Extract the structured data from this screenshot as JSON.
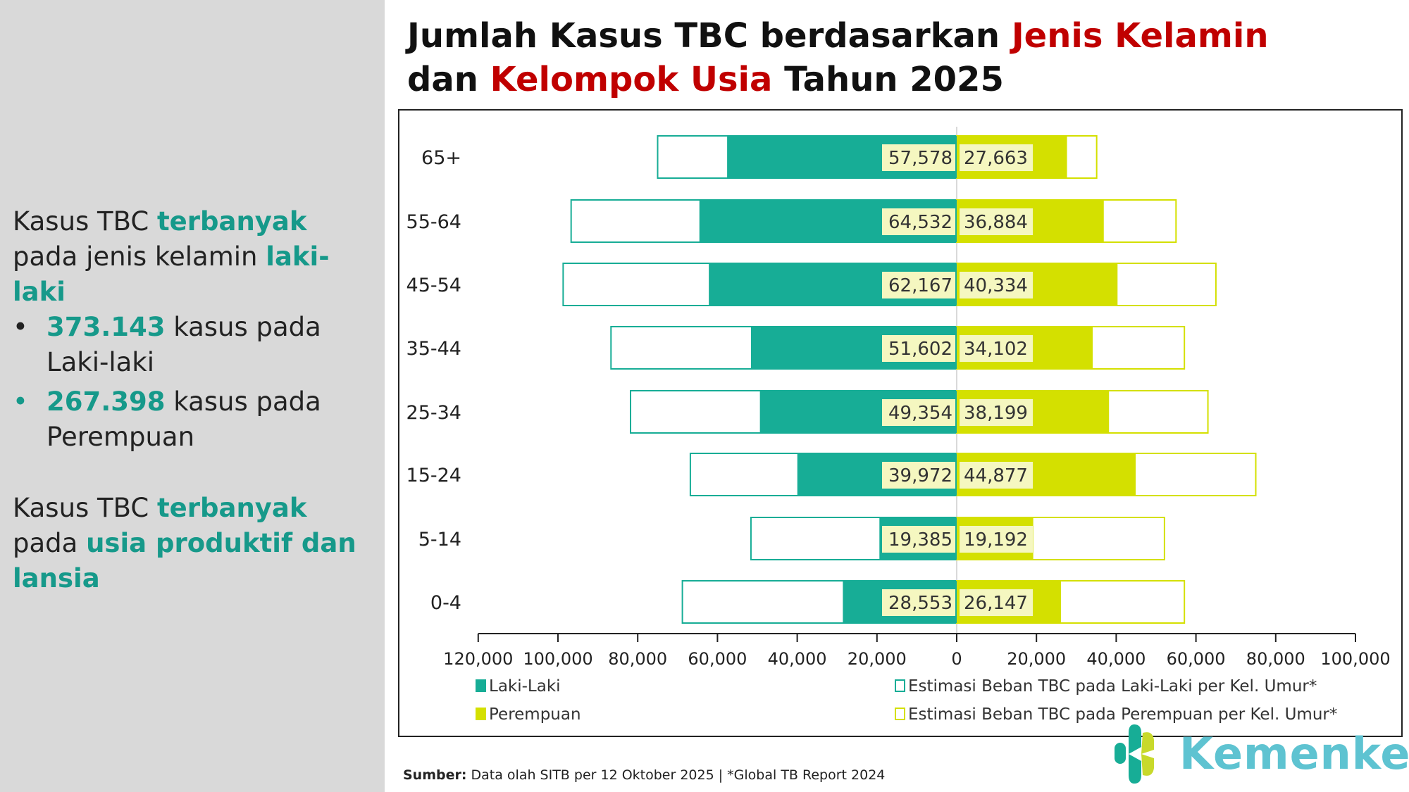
{
  "left_panel": {
    "p1": {
      "a": "Kasus TBC ",
      "b": "terbanyak",
      "c": " pada jenis kelamin ",
      "d": "laki-laki"
    },
    "bullets": [
      {
        "num": "373.143",
        "text": " kasus pada Laki-laki"
      },
      {
        "num": "267.398",
        "text": " kasus pada Perempuan"
      }
    ],
    "p2": {
      "a": "Kasus TBC ",
      "b": "terbanyak",
      "c": " pada ",
      "d": "usia produktif dan lansia"
    }
  },
  "title": {
    "a": "Jumlah Kasus TBC berdasarkan ",
    "b": "Jenis Kelamin",
    "c": "dan ",
    "d": "Kelompok Usia",
    "e": " Tahun 2025"
  },
  "source": {
    "label": "Sumber:",
    "text": " Data olah SITB per 12 Oktober 2025 | *Global TB Report 2024"
  },
  "logo": {
    "text": "Kemenkes"
  },
  "colors": {
    "male": "#17ad96",
    "female": "#d4e000",
    "label_bg": "#f5f7c0"
  },
  "chart_data": {
    "type": "bar",
    "orientation": "horizontal-population-pyramid",
    "categories": [
      "65+",
      "55-64",
      "45-54",
      "35-44",
      "25-34",
      "15-24",
      "5-14",
      "0-4"
    ],
    "series": [
      {
        "name": "Laki-Laki",
        "values": [
          57578,
          64532,
          62167,
          51602,
          49354,
          39972,
          19385,
          28553
        ],
        "labels": [
          "57,578",
          "64,532",
          "62,167",
          "51,602",
          "49,354",
          "39,972",
          "19,385",
          "28,553"
        ]
      },
      {
        "name": "Perempuan",
        "values": [
          27663,
          36884,
          40334,
          34102,
          38199,
          44877,
          19192,
          26147
        ],
        "labels": [
          "27,663",
          "36,884",
          "40,334",
          "34,102",
          "38,199",
          "44,877",
          "19,192",
          "26,147"
        ]
      },
      {
        "name": "Estimasi Beban TBC pada Laki-Laki per Kel. Umur*",
        "values": [
          75000,
          96700,
          98700,
          86700,
          81800,
          66800,
          51600,
          68800
        ]
      },
      {
        "name": "Estimasi Beban TBC pada Perempuan per Kel. Umur*",
        "values": [
          35100,
          55000,
          65000,
          57100,
          63000,
          75000,
          52100,
          57100
        ]
      }
    ],
    "xlim": [
      -120000,
      100000
    ],
    "xticks": [
      "120,000",
      "100,000",
      "80,000",
      "60,000",
      "40,000",
      "20,000",
      "0",
      "20,000",
      "40,000",
      "60,000",
      "80,000",
      "100,000"
    ],
    "legend_position": "bottom"
  }
}
